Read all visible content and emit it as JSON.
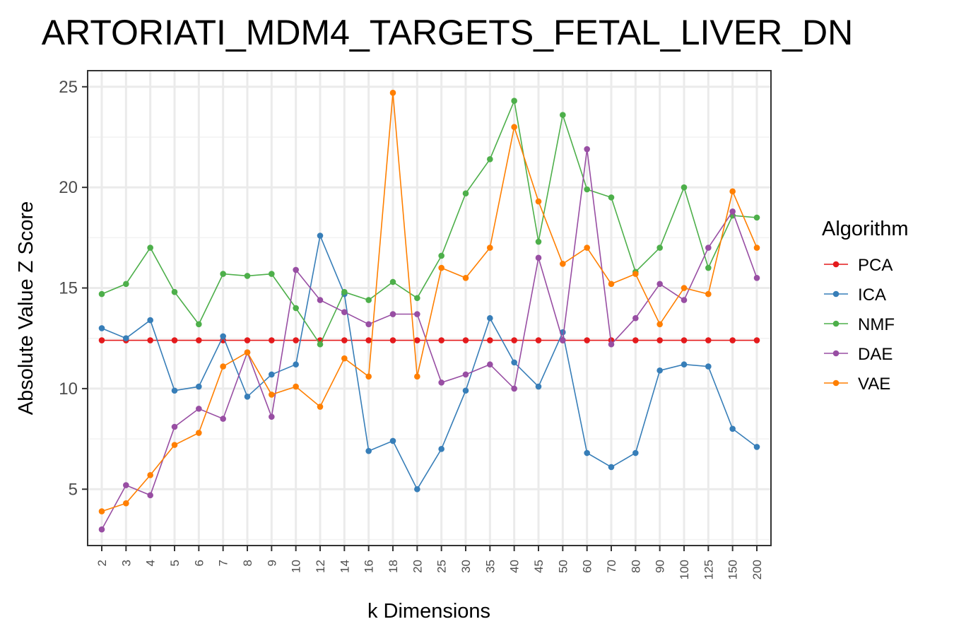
{
  "chart_data": {
    "type": "line",
    "title": "ARTORIATI_MDM4_TARGETS_FETAL_LIVER_DN",
    "xlabel": "k Dimensions",
    "ylabel": "Absolute Value Z Score",
    "categories": [
      "2",
      "3",
      "4",
      "5",
      "6",
      "7",
      "8",
      "9",
      "10",
      "12",
      "14",
      "16",
      "18",
      "20",
      "25",
      "30",
      "35",
      "40",
      "45",
      "50",
      "60",
      "70",
      "80",
      "90",
      "100",
      "125",
      "150",
      "200"
    ],
    "ylim": [
      2.2,
      25.8
    ],
    "yticks": [
      "5",
      "10",
      "15",
      "20",
      "25"
    ],
    "grid": true,
    "legend": {
      "title": "Algorithm",
      "position": "right"
    },
    "series": [
      {
        "name": "PCA",
        "color": "#E41A1C",
        "values": [
          12.4,
          12.4,
          12.4,
          12.4,
          12.4,
          12.4,
          12.4,
          12.4,
          12.4,
          12.4,
          12.4,
          12.4,
          12.4,
          12.4,
          12.4,
          12.4,
          12.4,
          12.4,
          12.4,
          12.4,
          12.4,
          12.4,
          12.4,
          12.4,
          12.4,
          12.4,
          12.4,
          12.4
        ]
      },
      {
        "name": "ICA",
        "color": "#377EB8",
        "values": [
          13.0,
          12.5,
          13.4,
          9.9,
          10.1,
          12.6,
          9.6,
          10.7,
          11.2,
          17.6,
          14.7,
          6.9,
          7.4,
          5.0,
          7.0,
          9.9,
          13.5,
          11.3,
          10.1,
          12.8,
          6.8,
          6.1,
          6.8,
          10.9,
          11.2,
          11.1,
          8.0,
          7.1
        ]
      },
      {
        "name": "NMF",
        "color": "#4DAF4A",
        "values": [
          14.7,
          15.2,
          17.0,
          14.8,
          13.2,
          15.7,
          15.6,
          15.7,
          14.0,
          12.2,
          14.8,
          14.4,
          15.3,
          14.5,
          16.6,
          19.7,
          21.4,
          24.3,
          17.3,
          23.6,
          19.9,
          19.5,
          15.8,
          17.0,
          20.0,
          16.0,
          18.6,
          18.5
        ]
      },
      {
        "name": "DAE",
        "color": "#984EA3",
        "values": [
          3.0,
          5.2,
          4.7,
          8.1,
          9.0,
          8.5,
          11.8,
          8.6,
          15.9,
          14.4,
          13.8,
          13.2,
          13.7,
          13.7,
          10.3,
          10.7,
          11.2,
          10.0,
          16.5,
          12.4,
          21.9,
          12.2,
          13.5,
          15.2,
          14.4,
          17.0,
          18.8,
          15.5
        ]
      },
      {
        "name": "VAE",
        "color": "#FF7F00",
        "values": [
          3.9,
          4.3,
          5.7,
          7.2,
          7.8,
          11.1,
          11.8,
          9.7,
          10.1,
          9.1,
          11.5,
          10.6,
          24.7,
          10.6,
          16.0,
          15.5,
          17.0,
          23.0,
          19.3,
          16.2,
          17.0,
          15.2,
          15.7,
          13.2,
          15.0,
          14.7,
          19.8,
          17.0
        ]
      }
    ]
  }
}
